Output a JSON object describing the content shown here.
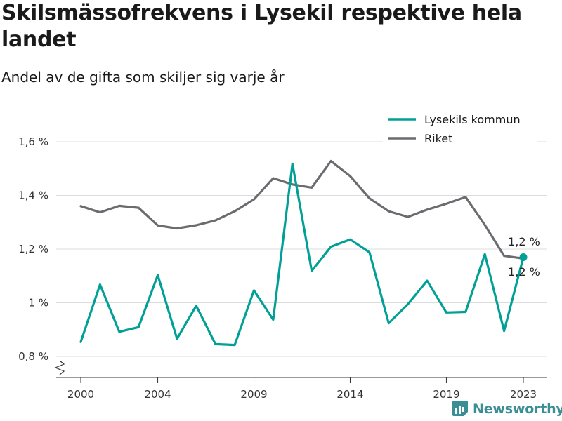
{
  "header": {
    "title": "Skilsmässofrekvens i Lysekil respektive hela landet",
    "subtitle": "Andel av de gifta som skiljer sig varje år"
  },
  "brand": {
    "name": "Newsworthy",
    "icon": "newsworthy-logo-icon",
    "color": "#3a8f94"
  },
  "chart_data": {
    "type": "line",
    "title": "Skilsmässofrekvens i Lysekil respektive hela landet",
    "subtitle": "Andel av de gifta som skiljer sig varje år",
    "xlabel": "",
    "ylabel": "",
    "x": [
      2000,
      2001,
      2002,
      2003,
      2004,
      2005,
      2006,
      2007,
      2008,
      2009,
      2010,
      2011,
      2012,
      2013,
      2014,
      2015,
      2016,
      2017,
      2018,
      2019,
      2020,
      2021,
      2022,
      2023
    ],
    "x_tick_labels": [
      "2000",
      "2004",
      "2009",
      "2014",
      "2019",
      "2023"
    ],
    "y_tick_labels": [
      "0,8 %",
      "1 %",
      "1,2 %",
      "1,4 %",
      "1,6 %"
    ],
    "ylim": [
      0.8,
      1.6
    ],
    "y_axis_break": true,
    "grid": "horizontal",
    "legend_position": "top-right",
    "series": [
      {
        "name": "Lysekils kommun",
        "color": "#00a097",
        "values": [
          0.854,
          1.068,
          0.892,
          0.909,
          1.103,
          0.866,
          0.989,
          0.846,
          0.843,
          1.046,
          0.937,
          1.518,
          1.119,
          1.209,
          1.236,
          1.188,
          0.924,
          0.995,
          1.082,
          0.964,
          0.966,
          1.181,
          0.895,
          1.17
        ],
        "end_label": "1,2 %"
      },
      {
        "name": "Riket",
        "color": "#6b6b70",
        "values": [
          1.36,
          1.337,
          1.361,
          1.354,
          1.288,
          1.277,
          1.289,
          1.307,
          1.341,
          1.385,
          1.464,
          1.441,
          1.429,
          1.528,
          1.472,
          1.389,
          1.341,
          1.32,
          1.347,
          1.369,
          1.394,
          1.29,
          1.175,
          1.165
        ],
        "end_label": "1,2 %"
      }
    ]
  }
}
